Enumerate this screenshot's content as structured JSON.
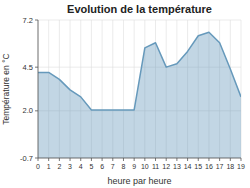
{
  "chart_data": {
    "type": "area",
    "title": "Evolution de la température",
    "x_label": "heure par heure",
    "y_label": "Température en °C",
    "x": [
      0,
      1,
      2,
      3,
      4,
      5,
      6,
      7,
      8,
      9,
      10,
      11,
      12,
      13,
      14,
      15,
      16,
      17,
      18,
      19
    ],
    "values": [
      4.2,
      4.2,
      3.8,
      3.2,
      2.8,
      2.05,
      2.05,
      2.05,
      2.05,
      2.05,
      5.6,
      5.9,
      4.5,
      4.7,
      5.4,
      6.3,
      6.5,
      5.9,
      4.4,
      2.8
    ],
    "color": "#6699bb",
    "xlim": [
      0,
      19
    ],
    "xticks": [
      0,
      1,
      2,
      3,
      4,
      5,
      6,
      7,
      8,
      9,
      10,
      11,
      12,
      13,
      14,
      15,
      16,
      17,
      18,
      19
    ],
    "ylim": [
      -0.7,
      7.2
    ],
    "yticks": [
      -0.7,
      {
        "value": 2.0,
        "label": "2.0"
      },
      4.5,
      7.2
    ],
    "grid": true
  }
}
